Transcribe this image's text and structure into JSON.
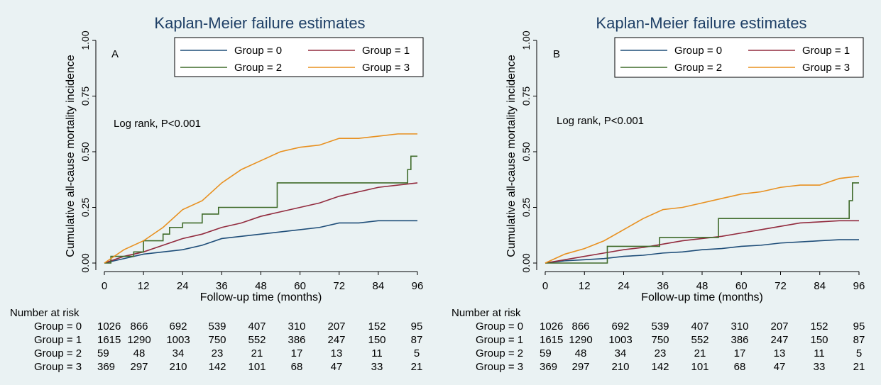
{
  "chart_data": [
    {
      "type": "line",
      "panel_label": "A",
      "title": "Kaplan-Meier failure estimates",
      "xlabel": "Follow-up time (months)",
      "ylabel": "Cumulative all-cause mortality incidence",
      "xlim": [
        0,
        96
      ],
      "ylim": [
        0,
        1
      ],
      "xticks": [
        "0",
        "12",
        "24",
        "36",
        "48",
        "60",
        "72",
        "84",
        "96"
      ],
      "yticks": [
        "0.00",
        "0.25",
        "0.50",
        "0.75",
        "1.00"
      ],
      "annotation": "Log rank, P<0.001",
      "legend_position": "top-right",
      "grid": false,
      "series": [
        {
          "name": "Group = 0",
          "color": "#1f4e79",
          "step": false,
          "x": [
            0,
            6,
            12,
            18,
            24,
            30,
            36,
            42,
            48,
            54,
            60,
            66,
            72,
            78,
            84,
            90,
            96
          ],
          "y": [
            0,
            0.02,
            0.04,
            0.05,
            0.06,
            0.08,
            0.11,
            0.12,
            0.13,
            0.14,
            0.15,
            0.16,
            0.18,
            0.18,
            0.19,
            0.19,
            0.19
          ]
        },
        {
          "name": "Group = 1",
          "color": "#922b3e",
          "step": false,
          "x": [
            0,
            6,
            12,
            18,
            24,
            30,
            36,
            42,
            48,
            54,
            60,
            66,
            72,
            78,
            84,
            90,
            96
          ],
          "y": [
            0,
            0.03,
            0.05,
            0.08,
            0.11,
            0.13,
            0.16,
            0.18,
            0.21,
            0.23,
            0.25,
            0.27,
            0.3,
            0.32,
            0.34,
            0.35,
            0.36
          ]
        },
        {
          "name": "Group = 2",
          "color": "#3f6b2a",
          "step": true,
          "x": [
            0,
            2,
            9,
            12,
            18,
            20,
            24,
            30,
            35,
            53,
            93,
            94,
            96
          ],
          "y": [
            0,
            0.03,
            0.05,
            0.1,
            0.13,
            0.16,
            0.18,
            0.22,
            0.25,
            0.36,
            0.42,
            0.48,
            0.48
          ]
        },
        {
          "name": "Group = 3",
          "color": "#e8901f",
          "step": false,
          "x": [
            0,
            6,
            12,
            18,
            24,
            30,
            36,
            42,
            48,
            54,
            60,
            66,
            72,
            78,
            84,
            90,
            96
          ],
          "y": [
            0,
            0.06,
            0.1,
            0.16,
            0.24,
            0.28,
            0.36,
            0.42,
            0.46,
            0.5,
            0.52,
            0.53,
            0.56,
            0.56,
            0.57,
            0.58,
            0.58
          ]
        }
      ],
      "risk_table": {
        "title": "Number at risk",
        "rows": [
          {
            "label": "Group = 0",
            "values": [
              "1026",
              "866",
              "692",
              "539",
              "407",
              "310",
              "207",
              "152",
              "95"
            ]
          },
          {
            "label": "Group = 1",
            "values": [
              "1615",
              "1290",
              "1003",
              "750",
              "552",
              "386",
              "247",
              "150",
              "87"
            ]
          },
          {
            "label": "Group = 2",
            "values": [
              "59",
              "48",
              "34",
              "23",
              "21",
              "17",
              "13",
              "11",
              "5"
            ]
          },
          {
            "label": "Group = 3",
            "values": [
              "369",
              "297",
              "210",
              "142",
              "101",
              "68",
              "47",
              "33",
              "21"
            ]
          }
        ]
      }
    },
    {
      "type": "line",
      "panel_label": "B",
      "title": "Kaplan-Meier failure estimates",
      "xlabel": "Follow-up time (months)",
      "ylabel": "Cumulative all-cause mortality incidence",
      "xlim": [
        0,
        96
      ],
      "ylim": [
        0,
        1
      ],
      "xticks": [
        "0",
        "12",
        "24",
        "36",
        "48",
        "60",
        "72",
        "84",
        "96"
      ],
      "yticks": [
        "0.00",
        "0.25",
        "0.50",
        "0.75",
        "1.00"
      ],
      "annotation": "Log rank, P<0.001",
      "legend_position": "top-right",
      "grid": false,
      "series": [
        {
          "name": "Group = 0",
          "color": "#1f4e79",
          "step": false,
          "x": [
            0,
            6,
            12,
            18,
            24,
            30,
            36,
            42,
            48,
            54,
            60,
            66,
            72,
            78,
            84,
            90,
            96
          ],
          "y": [
            0,
            0.01,
            0.015,
            0.02,
            0.03,
            0.035,
            0.045,
            0.05,
            0.06,
            0.065,
            0.075,
            0.08,
            0.09,
            0.095,
            0.1,
            0.105,
            0.105
          ]
        },
        {
          "name": "Group = 1",
          "color": "#922b3e",
          "step": false,
          "x": [
            0,
            6,
            12,
            18,
            24,
            30,
            36,
            42,
            48,
            54,
            60,
            66,
            72,
            78,
            84,
            90,
            96
          ],
          "y": [
            0,
            0.015,
            0.03,
            0.045,
            0.06,
            0.07,
            0.085,
            0.1,
            0.11,
            0.12,
            0.135,
            0.15,
            0.165,
            0.18,
            0.185,
            0.19,
            0.19
          ]
        },
        {
          "name": "Group = 2",
          "color": "#3f6b2a",
          "step": true,
          "x": [
            0,
            19,
            35,
            53,
            93,
            94,
            96
          ],
          "y": [
            0,
            0.075,
            0.115,
            0.2,
            0.28,
            0.36,
            0.36
          ]
        },
        {
          "name": "Group = 3",
          "color": "#e8901f",
          "step": false,
          "x": [
            0,
            6,
            12,
            18,
            24,
            30,
            36,
            42,
            48,
            54,
            60,
            66,
            72,
            78,
            84,
            90,
            96
          ],
          "y": [
            0,
            0.04,
            0.065,
            0.1,
            0.15,
            0.2,
            0.24,
            0.25,
            0.27,
            0.29,
            0.31,
            0.32,
            0.34,
            0.35,
            0.35,
            0.38,
            0.39
          ]
        }
      ],
      "risk_table": {
        "title": "Number at risk",
        "rows": [
          {
            "label": "Group = 0",
            "values": [
              "1026",
              "866",
              "692",
              "539",
              "407",
              "310",
              "207",
              "152",
              "95"
            ]
          },
          {
            "label": "Group = 1",
            "values": [
              "1615",
              "1290",
              "1003",
              "750",
              "552",
              "386",
              "247",
              "150",
              "87"
            ]
          },
          {
            "label": "Group = 2",
            "values": [
              "59",
              "48",
              "34",
              "23",
              "21",
              "17",
              "13",
              "11",
              "5"
            ]
          },
          {
            "label": "Group = 3",
            "values": [
              "369",
              "297",
              "210",
              "142",
              "101",
              "68",
              "47",
              "33",
              "21"
            ]
          }
        ]
      }
    }
  ]
}
